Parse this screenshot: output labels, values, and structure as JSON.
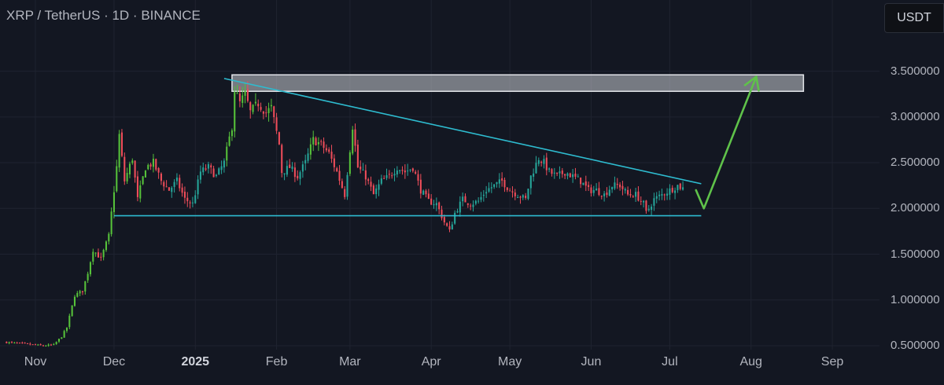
{
  "header": {
    "title": "XRP / TetherUS · 1D · BINANCE",
    "currency": "USDT"
  },
  "colors": {
    "background": "#131722",
    "grid": "#1f2330",
    "up_candle": "#26a69a",
    "up_candle_bright": "#56c23a",
    "down_candle": "#ef4d5a",
    "trendline": "#2ebcd0",
    "resistance_zone": "#c9ccd2",
    "arrow": "#5fc24a"
  },
  "chart_data": {
    "type": "candlestick",
    "symbol": "XRP / TetherUS",
    "interval": "1D",
    "exchange": "BINANCE",
    "x_ticks": [
      {
        "label": "Nov",
        "date": "2024-11-01",
        "bold": false
      },
      {
        "label": "Dec",
        "date": "2024-12-01",
        "bold": false
      },
      {
        "label": "2025",
        "date": "2025-01-01",
        "bold": true
      },
      {
        "label": "Feb",
        "date": "2025-02-01",
        "bold": false
      },
      {
        "label": "Mar",
        "date": "2025-03-01",
        "bold": false
      },
      {
        "label": "Apr",
        "date": "2025-04-01",
        "bold": false
      },
      {
        "label": "May",
        "date": "2025-05-01",
        "bold": false
      },
      {
        "label": "Jun",
        "date": "2025-06-01",
        "bold": false
      },
      {
        "label": "Jul",
        "date": "2025-07-01",
        "bold": false
      },
      {
        "label": "Aug",
        "date": "2025-08-01",
        "bold": false
      },
      {
        "label": "Sep",
        "date": "2025-09-01",
        "bold": false
      }
    ],
    "y_ticks": [
      {
        "label": "3.500000",
        "value": 3.5
      },
      {
        "label": "3.000000",
        "value": 3.0
      },
      {
        "label": "2.500000",
        "value": 2.5
      },
      {
        "label": "2.000000",
        "value": 2.0
      },
      {
        "label": "1.500000",
        "value": 1.5
      },
      {
        "label": "1.000000",
        "value": 1.0
      },
      {
        "label": "0.500000",
        "value": 0.5
      }
    ],
    "ylim": [
      0.5,
      3.9
    ],
    "xlim": [
      "2024-10-20",
      "2025-09-19"
    ],
    "price_path": [
      [
        "2024-10-20",
        0.54
      ],
      [
        "2024-10-28",
        0.52
      ],
      [
        "2024-11-04",
        0.5
      ],
      [
        "2024-11-08",
        0.51
      ],
      [
        "2024-11-11",
        0.6
      ],
      [
        "2024-11-13",
        0.7
      ],
      [
        "2024-11-16",
        1.05
      ],
      [
        "2024-11-19",
        1.1
      ],
      [
        "2024-11-21",
        1.3
      ],
      [
        "2024-11-23",
        1.55
      ],
      [
        "2024-11-26",
        1.45
      ],
      [
        "2024-11-29",
        1.7
      ],
      [
        "2024-11-30",
        1.95
      ],
      [
        "2024-12-02",
        2.45
      ],
      [
        "2024-12-03",
        2.8
      ],
      [
        "2024-12-05",
        2.3
      ],
      [
        "2024-12-08",
        2.55
      ],
      [
        "2024-12-10",
        2.1
      ],
      [
        "2024-12-13",
        2.45
      ],
      [
        "2024-12-16",
        2.5
      ],
      [
        "2024-12-19",
        2.3
      ],
      [
        "2024-12-22",
        2.2
      ],
      [
        "2024-12-25",
        2.3
      ],
      [
        "2024-12-28",
        2.1
      ],
      [
        "2024-12-31",
        2.05
      ],
      [
        "2025-01-03",
        2.4
      ],
      [
        "2025-01-06",
        2.45
      ],
      [
        "2025-01-09",
        2.35
      ],
      [
        "2025-01-12",
        2.5
      ],
      [
        "2025-01-15",
        2.9
      ],
      [
        "2025-01-16",
        3.3
      ],
      [
        "2025-01-18",
        3.15
      ],
      [
        "2025-01-20",
        3.25
      ],
      [
        "2025-01-22",
        3.05
      ],
      [
        "2025-01-25",
        3.15
      ],
      [
        "2025-01-28",
        3.05
      ],
      [
        "2025-01-30",
        3.1
      ],
      [
        "2025-02-02",
        2.7
      ],
      [
        "2025-02-03",
        2.4
      ],
      [
        "2025-02-06",
        2.45
      ],
      [
        "2025-02-09",
        2.35
      ],
      [
        "2025-02-12",
        2.5
      ],
      [
        "2025-02-15",
        2.75
      ],
      [
        "2025-02-18",
        2.7
      ],
      [
        "2025-02-21",
        2.6
      ],
      [
        "2025-02-24",
        2.4
      ],
      [
        "2025-02-27",
        2.15
      ],
      [
        "2025-03-02",
        2.9
      ],
      [
        "2025-03-04",
        2.45
      ],
      [
        "2025-03-07",
        2.35
      ],
      [
        "2025-03-10",
        2.15
      ],
      [
        "2025-03-13",
        2.3
      ],
      [
        "2025-03-16",
        2.35
      ],
      [
        "2025-03-19",
        2.45
      ],
      [
        "2025-03-22",
        2.4
      ],
      [
        "2025-03-25",
        2.45
      ],
      [
        "2025-03-28",
        2.2
      ],
      [
        "2025-03-31",
        2.08
      ],
      [
        "2025-04-03",
        2.05
      ],
      [
        "2025-04-06",
        1.85
      ],
      [
        "2025-04-08",
        1.75
      ],
      [
        "2025-04-10",
        1.95
      ],
      [
        "2025-04-13",
        2.1
      ],
      [
        "2025-04-16",
        2.05
      ],
      [
        "2025-04-19",
        2.08
      ],
      [
        "2025-04-22",
        2.2
      ],
      [
        "2025-04-25",
        2.25
      ],
      [
        "2025-04-28",
        2.3
      ],
      [
        "2025-05-01",
        2.2
      ],
      [
        "2025-05-04",
        2.15
      ],
      [
        "2025-05-07",
        2.1
      ],
      [
        "2025-05-09",
        2.35
      ],
      [
        "2025-05-12",
        2.55
      ],
      [
        "2025-05-14",
        2.5
      ],
      [
        "2025-05-16",
        2.4
      ],
      [
        "2025-05-19",
        2.35
      ],
      [
        "2025-05-22",
        2.4
      ],
      [
        "2025-05-25",
        2.35
      ],
      [
        "2025-05-28",
        2.3
      ],
      [
        "2025-05-31",
        2.2
      ],
      [
        "2025-06-03",
        2.2
      ],
      [
        "2025-06-06",
        2.15
      ],
      [
        "2025-06-09",
        2.25
      ],
      [
        "2025-06-12",
        2.25
      ],
      [
        "2025-06-15",
        2.15
      ],
      [
        "2025-06-18",
        2.15
      ],
      [
        "2025-06-21",
        2.05
      ],
      [
        "2025-06-22",
        1.95
      ],
      [
        "2025-06-25",
        2.1
      ],
      [
        "2025-06-28",
        2.15
      ],
      [
        "2025-07-01",
        2.2
      ],
      [
        "2025-07-04",
        2.25
      ],
      [
        "2025-07-06",
        2.22
      ]
    ],
    "annotations": {
      "resistance_zone": {
        "from": "2025-01-15",
        "to": "2025-08-21",
        "low": 3.28,
        "high": 3.46
      },
      "support_line": {
        "from": "2024-12-01",
        "to": "2025-07-13",
        "value": 1.92
      },
      "descending_trendline": {
        "start": [
          "2025-01-12",
          3.42
        ],
        "end": [
          "2025-07-13",
          2.27
        ]
      },
      "projection_arrow": [
        [
          "2025-07-11",
          2.2
        ],
        [
          "2025-07-14",
          2.0
        ],
        [
          "2025-08-03",
          3.44
        ]
      ]
    }
  }
}
